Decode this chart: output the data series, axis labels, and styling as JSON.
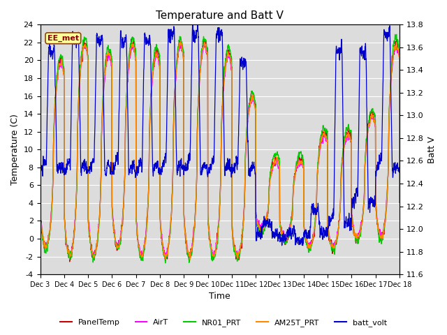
{
  "title": "Temperature and Batt V",
  "xlabel": "Time",
  "ylabel_left": "Temperature (C)",
  "ylabel_right": "Batt V",
  "ylim_left": [
    -4,
    24
  ],
  "ylim_right": [
    11.6,
    13.8
  ],
  "station_label": "EE_met",
  "x_tick_labels": [
    "Dec 3",
    "Dec 4",
    "Dec 5",
    "Dec 6",
    "Dec 7",
    "Dec 8",
    "Dec 9",
    "Dec 10",
    "Dec 11",
    "Dec 12",
    "Dec 13",
    "Dec 14",
    "Dec 15",
    "Dec 16",
    "Dec 17",
    "Dec 18"
  ],
  "series_colors": {
    "PanelTemp": "#cc0000",
    "AirT": "#ff00ff",
    "NR01_PRT": "#00cc00",
    "AM25T_PRT": "#ff8800",
    "batt_volt": "#0000cc"
  },
  "background_color": "#dcdcdc",
  "grid_color": "#ffffff",
  "title_fontsize": 11,
  "axis_fontsize": 9,
  "tick_fontsize": 8,
  "n_points": 2880
}
